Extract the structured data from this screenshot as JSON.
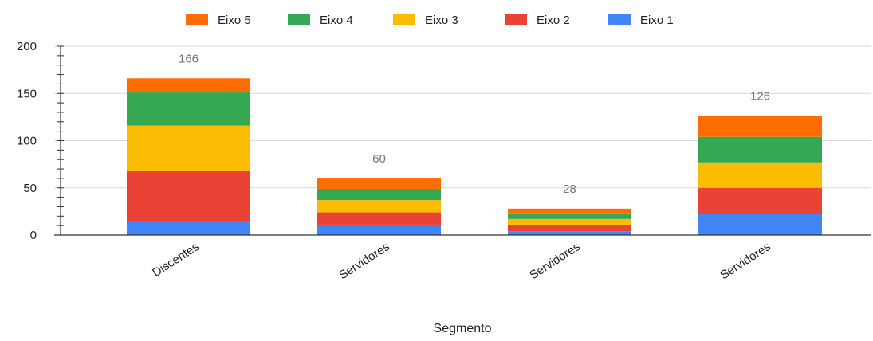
{
  "chart_data": {
    "type": "bar",
    "stacked": true,
    "xlabel": "Segmento",
    "ylabel": "",
    "ylim": [
      0,
      200
    ],
    "yticks": [
      0,
      50,
      100,
      150,
      200
    ],
    "grid": true,
    "legend_position": "top",
    "categories": [
      "Discentes",
      "Servidores",
      "Servidores",
      "Servidores"
    ],
    "totals": [
      166,
      60,
      28,
      126
    ],
    "series": [
      {
        "name": "Eixo 1",
        "color": "#4285F4",
        "values": [
          15,
          11,
          4,
          22
        ]
      },
      {
        "name": "Eixo 2",
        "color": "#EA4335",
        "values": [
          53,
          13,
          7,
          28
        ]
      },
      {
        "name": "Eixo 3",
        "color": "#FBBC04",
        "values": [
          48,
          13,
          6,
          27
        ]
      },
      {
        "name": "Eixo 4",
        "color": "#34A853",
        "values": [
          35,
          12,
          6,
          27
        ]
      },
      {
        "name": "Eixo 5",
        "color": "#FF6D01",
        "values": [
          15,
          11,
          5,
          22
        ]
      }
    ],
    "legend_order": [
      "Eixo 5",
      "Eixo 4",
      "Eixo 3",
      "Eixo 2",
      "Eixo 1"
    ]
  }
}
